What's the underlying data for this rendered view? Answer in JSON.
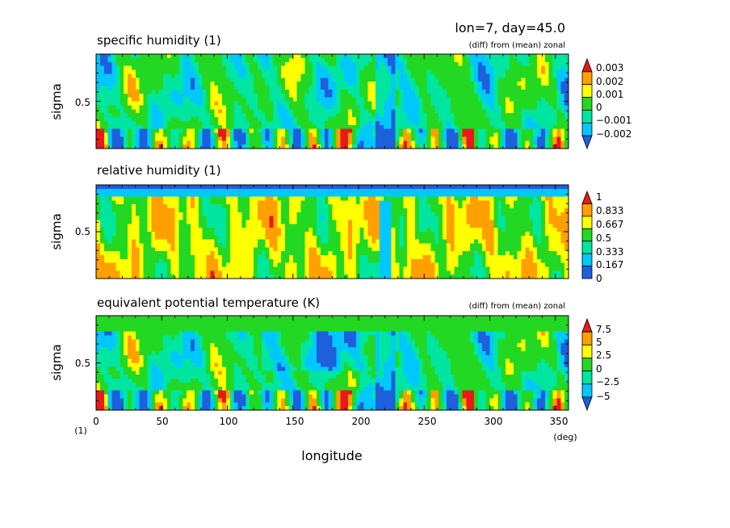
{
  "header": {
    "info": "lon=7, day=45.0"
  },
  "chart_data": [
    {
      "type": "heatmap",
      "title": "specific humidity (1)",
      "subtitle": "(diff) from (mean) zonal",
      "ylabel": "sigma",
      "yticks": [
        "0.5"
      ],
      "xlim": [
        0,
        360
      ],
      "ylim": [
        0,
        1
      ],
      "legend_placement": "right",
      "legend": [
        "0.003",
        "0.002",
        "0.001",
        "0",
        "−0.001",
        "−0.002"
      ],
      "colors": [
        "#1e5fdc",
        "#00c8ff",
        "#00e6a0",
        "#22d822",
        "#ffff00",
        "#ff9f00",
        "#e61a1a"
      ],
      "field": "sh"
    },
    {
      "type": "heatmap",
      "title": "relative humidity (1)",
      "subtitle": "",
      "ylabel": "sigma",
      "yticks": [
        "0.5"
      ],
      "xlim": [
        0,
        360
      ],
      "ylim": [
        0,
        1
      ],
      "legend_placement": "right",
      "legend": [
        "1",
        "0.833",
        "0.667",
        "0.5",
        "0.333",
        "0.167",
        "0"
      ],
      "colors": [
        "#1e5fdc",
        "#00c8ff",
        "#00e6a0",
        "#22d822",
        "#ffff00",
        "#ff9f00",
        "#e61a1a"
      ],
      "field": "rh"
    },
    {
      "type": "heatmap",
      "title": "equivalent potential temperature (K)",
      "subtitle": "(diff) from (mean) zonal",
      "ylabel": "sigma",
      "yticks": [
        "0.5"
      ],
      "xlabel": "longitude",
      "xticks": [
        "0",
        "50",
        "100",
        "150",
        "200",
        "250",
        "300",
        "350"
      ],
      "xunit": "(deg)",
      "yunit": "(1)",
      "xlim": [
        0,
        360
      ],
      "ylim": [
        0,
        1
      ],
      "legend_placement": "right",
      "legend": [
        "7.5",
        "5",
        "2.5",
        "0",
        "−2.5",
        "−5"
      ],
      "colors": [
        "#1e5fdc",
        "#00c8ff",
        "#00e6a0",
        "#22d822",
        "#ffff00",
        "#ff9f00",
        "#e61a1a"
      ],
      "field": "th"
    }
  ]
}
